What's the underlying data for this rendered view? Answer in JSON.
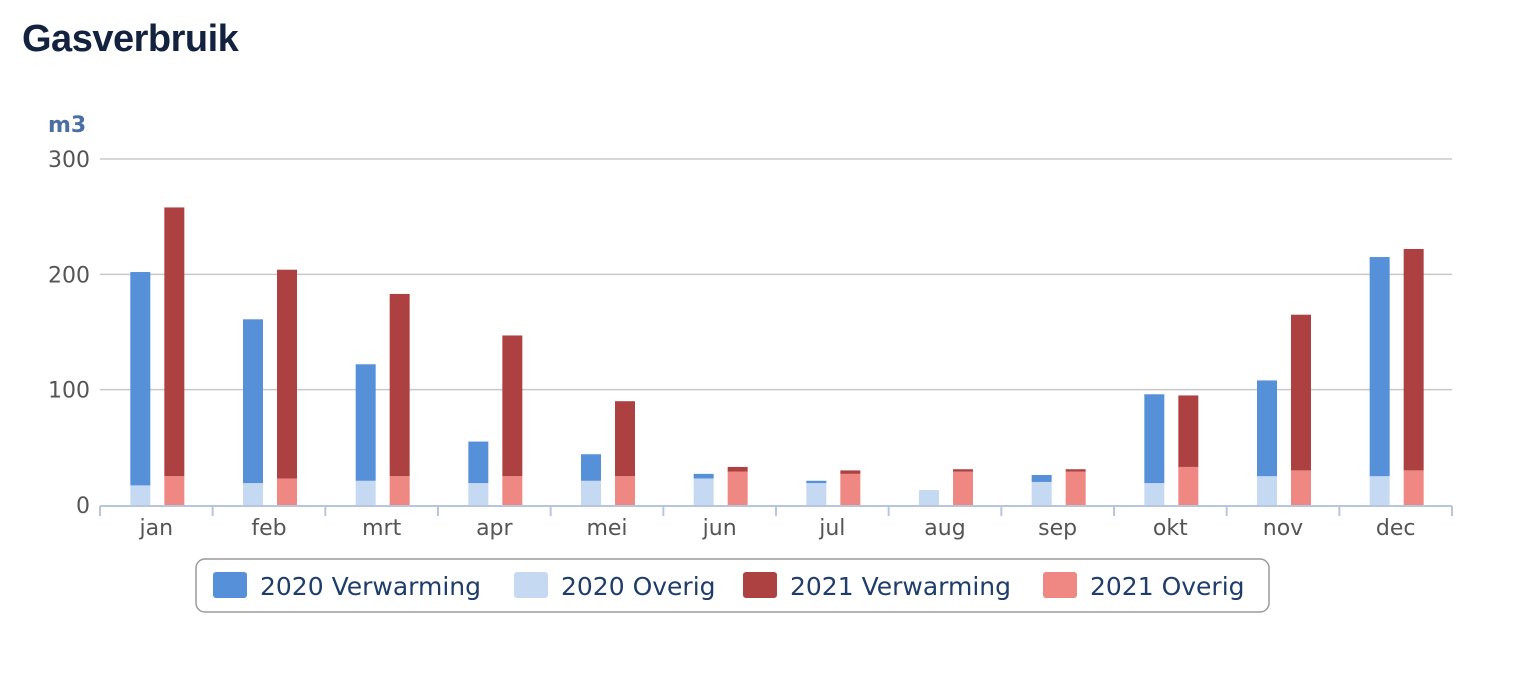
{
  "page": {
    "title": "Gasverbruik"
  },
  "chart_data": {
    "type": "bar",
    "stacked": true,
    "title": "Gasverbruik",
    "ylabel": "m3",
    "xlabel": "",
    "ylim": [
      0,
      300
    ],
    "yticks": [
      0,
      100,
      200,
      300
    ],
    "grid": true,
    "legend_position": "bottom",
    "categories": [
      "jan",
      "feb",
      "mrt",
      "apr",
      "mei",
      "jun",
      "jul",
      "aug",
      "sep",
      "okt",
      "nov",
      "dec"
    ],
    "groups": [
      {
        "stack": "2020",
        "series": [
          {
            "name": "2020 Overig",
            "color": "#c5d9f3",
            "values": [
              17,
              19,
              21,
              19,
              21,
              23,
              19,
              13,
              20,
              19,
              25,
              25
            ]
          },
          {
            "name": "2020 Verwarming",
            "color": "#5590d9",
            "values": [
              185,
              142,
              101,
              36,
              23,
              4,
              2,
              0,
              6,
              77,
              83,
              190
            ]
          }
        ]
      },
      {
        "stack": "2021",
        "series": [
          {
            "name": "2021 Overig",
            "color": "#ef8782",
            "values": [
              25,
              23,
              25,
              25,
              25,
              29,
              27,
              29,
              29,
              33,
              30,
              30
            ]
          },
          {
            "name": "2021 Verwarming",
            "color": "#ad4141",
            "values": [
              233,
              181,
              158,
              122,
              65,
              4,
              3,
              2,
              2,
              62,
              135,
              192
            ]
          }
        ]
      }
    ],
    "legend": [
      {
        "label": "2020 Verwarming",
        "color": "#5590d9"
      },
      {
        "label": "2020 Overig",
        "color": "#c5d9f3"
      },
      {
        "label": "2021 Verwarming",
        "color": "#ad4141"
      },
      {
        "label": "2021 Overig",
        "color": "#ef8782"
      }
    ]
  }
}
